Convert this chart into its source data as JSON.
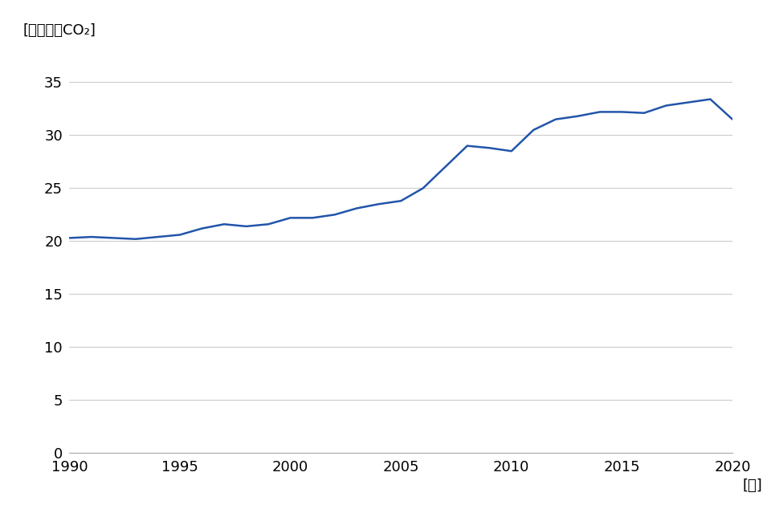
{
  "years": [
    1990,
    1991,
    1992,
    1993,
    1994,
    1995,
    1996,
    1997,
    1998,
    1999,
    2000,
    2001,
    2002,
    2003,
    2004,
    2005,
    2006,
    2007,
    2008,
    2009,
    2010,
    2011,
    2012,
    2013,
    2014,
    2015,
    2016,
    2017,
    2018,
    2019,
    2020
  ],
  "values": [
    20.3,
    20.4,
    20.3,
    20.2,
    20.4,
    20.6,
    21.2,
    21.6,
    21.4,
    21.6,
    22.2,
    22.2,
    22.5,
    23.1,
    23.5,
    23.8,
    25.0,
    27.0,
    29.0,
    28.8,
    28.5,
    30.5,
    31.5,
    31.8,
    32.2,
    32.2,
    32.1,
    32.8,
    33.1,
    33.4,
    31.5
  ],
  "line_color": "#2255aa",
  "line_width": 1.8,
  "background_color": "#ffffff",
  "ylabel": "[ギガトンCO₂]",
  "xlabel": "[年]",
  "ylim": [
    0,
    37
  ],
  "xlim": [
    1990,
    2020
  ],
  "yticks": [
    0,
    5,
    10,
    15,
    20,
    25,
    30,
    35
  ],
  "xticks": [
    1990,
    1995,
    2000,
    2005,
    2010,
    2015,
    2020
  ],
  "grid_color": "#cccccc",
  "grid_linewidth": 0.8,
  "tick_fontsize": 13,
  "label_fontsize": 13
}
